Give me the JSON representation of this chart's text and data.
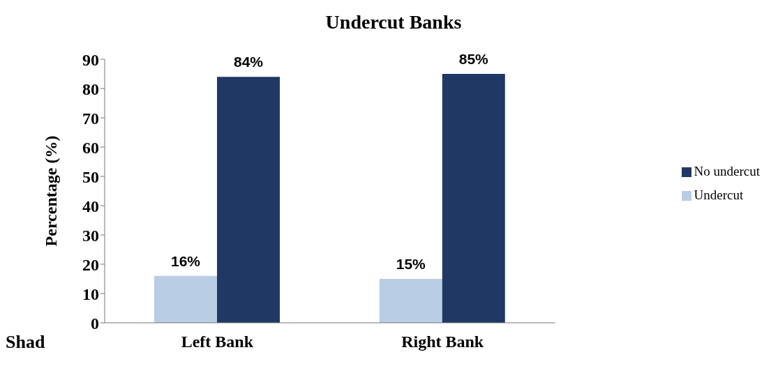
{
  "chart_data": {
    "type": "bar",
    "title": "Undercut Banks",
    "ylabel": "Percentage (%)",
    "categories": [
      "Left Bank",
      "Right Bank"
    ],
    "series": [
      {
        "name": "Undercut",
        "color": "#b9cde5",
        "values": [
          16,
          15
        ],
        "value_labels": [
          "16%",
          "15%"
        ]
      },
      {
        "name": "No undercut",
        "color": "#1f3864",
        "values": [
          84,
          85
        ],
        "value_labels": [
          "84%",
          "85%"
        ]
      }
    ],
    "ylim": [
      0,
      90
    ],
    "yticks": [
      0,
      10,
      20,
      30,
      40,
      50,
      60,
      70,
      80,
      90
    ],
    "grid": false,
    "legend": "right",
    "annotations": [
      "Shad"
    ]
  }
}
